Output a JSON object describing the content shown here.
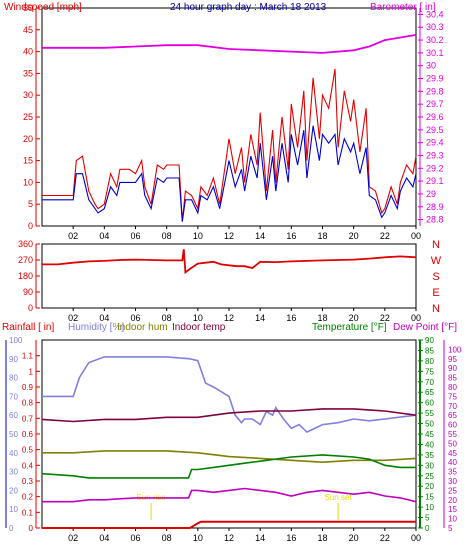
{
  "title": "24 hour graph day : March 18 2013",
  "colors": {
    "wind": "#e00000",
    "wind_avg": "#0000cc",
    "barometer": "#e000e0",
    "direction": "#e00000",
    "humidity": "#8080e0",
    "indoor_hum": "#808000",
    "indoor_temp": "#800040",
    "temperature": "#008000",
    "dew_point": "#c000c0",
    "rain": "#e00000",
    "sun_marker": "#e0e000",
    "grid": "#c0c0c0"
  },
  "charts": [
    {
      "id": "wind-baro",
      "left_label": "Windspeed [mph]",
      "right_label": "Barometer [ in]"
    },
    {
      "id": "direction",
      "left_label": "",
      "compass_labels": [
        "N",
        "W",
        "S",
        "E",
        "N"
      ]
    },
    {
      "id": "temp-hum",
      "labels": {
        "rainfall": "Rainfall [ in]",
        "humidity": "Humidity [%]",
        "indoor_hum": "Indoor hum",
        "indoor_temp": "Indoor temp",
        "temperature": "Temperature [°F]",
        "dew_point": "Dew Point [°F]"
      },
      "sun_labels": [
        "Sun rise",
        "Sun set"
      ]
    }
  ],
  "chart_data": [
    {
      "type": "line",
      "title": "24 hour graph day : March 18 2013",
      "x_ticks": [
        "02",
        "04",
        "06",
        "08",
        "10",
        "12",
        "14",
        "16",
        "18",
        "20",
        "22",
        "00"
      ],
      "xlim": [
        0,
        24
      ],
      "ylabel": "Windspeed [mph]",
      "ylim": [
        0,
        50
      ],
      "y_ticks": [
        0,
        5,
        10,
        15,
        20,
        25,
        30,
        35,
        40,
        45,
        50
      ],
      "y2label": "Barometer [ in]",
      "y2lim": [
        28.75,
        30.45
      ],
      "y2_ticks": [
        "28.8",
        "28.9",
        "29",
        "29.1",
        "29.2",
        "29.3",
        "29.4",
        "29.5",
        "29.6",
        "29.7",
        "29.8",
        "29.9",
        "30",
        "30.1",
        "30.2",
        "30.3",
        "30.4"
      ],
      "grid": false,
      "series": [
        {
          "name": "Windspeed [mph]",
          "axis": "left",
          "color_key": "wind",
          "x": [
            0,
            2,
            2.2,
            2.6,
            3,
            3.4,
            3.6,
            4,
            4.4,
            4.8,
            5,
            5.6,
            6,
            6.4,
            6.6,
            7,
            7.4,
            7.8,
            8,
            8.4,
            8.8,
            9,
            9.2,
            9.6,
            10,
            10.2,
            10.6,
            11,
            11.4,
            12,
            12.4,
            12.8,
            13,
            13.4,
            13.8,
            14,
            14.4,
            14.8,
            15,
            15.4,
            15.8,
            16,
            16.4,
            16.8,
            17,
            17.4,
            17.8,
            18,
            18.4,
            18.8,
            19,
            19.4,
            19.8,
            20,
            20.4,
            20.8,
            21,
            21.4,
            21.8,
            22,
            22.4,
            22.8,
            23,
            23.4,
            23.8,
            24
          ],
          "y": [
            7,
            7,
            15,
            16,
            8,
            5,
            4,
            5,
            12,
            9,
            13,
            13,
            12,
            15,
            9,
            5,
            14,
            13,
            14,
            14,
            14,
            1,
            8,
            7,
            4,
            9,
            7,
            11,
            5,
            20,
            12,
            18,
            10,
            21,
            14,
            26,
            8,
            22,
            10,
            25,
            13,
            28,
            18,
            31,
            15,
            34,
            20,
            30,
            27,
            36,
            18,
            31,
            24,
            29,
            17,
            27,
            9,
            8,
            3,
            4,
            9,
            5,
            10,
            14,
            12,
            16
          ]
        },
        {
          "name": "Wind average",
          "axis": "left",
          "color_key": "wind_avg",
          "x": [
            0,
            2,
            2.2,
            2.6,
            3,
            3.4,
            3.6,
            4,
            4.4,
            4.8,
            5,
            5.6,
            6,
            6.4,
            6.6,
            7,
            7.4,
            7.8,
            8,
            8.4,
            8.8,
            9,
            9.2,
            9.6,
            10,
            10.2,
            10.6,
            11,
            11.4,
            12,
            12.4,
            12.8,
            13,
            13.4,
            13.8,
            14,
            14.4,
            14.8,
            15,
            15.4,
            15.8,
            16,
            16.4,
            16.8,
            17,
            17.4,
            17.8,
            18,
            18.4,
            18.8,
            19,
            19.4,
            19.8,
            20,
            20.4,
            20.8,
            21,
            21.4,
            21.8,
            22,
            22.4,
            22.8,
            23,
            23.4,
            23.8,
            24
          ],
          "y": [
            6,
            6,
            12,
            12,
            6,
            4,
            3,
            4,
            9,
            7,
            10,
            10,
            10,
            12,
            7,
            4,
            11,
            10,
            11,
            11,
            11,
            1,
            6,
            6,
            3,
            7,
            6,
            9,
            4,
            15,
            9,
            13,
            8,
            16,
            11,
            19,
            6,
            16,
            8,
            19,
            10,
            21,
            14,
            22,
            11,
            23,
            15,
            21,
            19,
            21,
            14,
            20,
            17,
            19,
            12,
            18,
            7,
            6,
            2,
            3,
            7,
            4,
            8,
            11,
            9,
            12
          ]
        },
        {
          "name": "Barometer [ in]",
          "axis": "right",
          "color_key": "barometer",
          "x": [
            0,
            2,
            4,
            6,
            8,
            10,
            12,
            14,
            16,
            18,
            20,
            21,
            22,
            23,
            24
          ],
          "y": [
            30.14,
            30.14,
            30.14,
            30.15,
            30.16,
            30.16,
            30.13,
            30.12,
            30.11,
            30.1,
            30.12,
            30.15,
            30.2,
            30.22,
            30.24
          ]
        }
      ]
    },
    {
      "type": "line",
      "x_ticks": [
        "02",
        "04",
        "06",
        "08",
        "10",
        "12",
        "14",
        "16",
        "18",
        "20",
        "22",
        "00"
      ],
      "xlim": [
        0,
        24
      ],
      "ylim": [
        0,
        360
      ],
      "y_ticks": [
        0,
        90,
        180,
        270,
        360
      ],
      "series": [
        {
          "name": "Wind direction",
          "color_key": "direction",
          "x": [
            0,
            1,
            2,
            3,
            4,
            5,
            6,
            7,
            8,
            9,
            9.1,
            9.2,
            9.5,
            10,
            10.5,
            11,
            11.5,
            12,
            12.5,
            13,
            13.5,
            14,
            15,
            16,
            17,
            18,
            19,
            20,
            21,
            22,
            23,
            24
          ],
          "y": [
            245,
            245,
            255,
            262,
            265,
            270,
            272,
            270,
            268,
            268,
            330,
            200,
            220,
            250,
            255,
            260,
            245,
            240,
            235,
            235,
            225,
            260,
            258,
            262,
            265,
            268,
            270,
            272,
            278,
            285,
            290,
            285
          ]
        }
      ]
    },
    {
      "type": "line",
      "x_ticks": [
        "02",
        "04",
        "06",
        "08",
        "10",
        "12",
        "14",
        "16",
        "18",
        "20",
        "22",
        "00"
      ],
      "xlim": [
        0,
        24
      ],
      "rainfall_axis": {
        "label": "Rainfall [ in]",
        "lim": [
          0,
          1.2
        ],
        "ticks": [
          0,
          0.1,
          0.2,
          0.3,
          0.4,
          0.5,
          0.6,
          0.7,
          0.8,
          0.9,
          1,
          1.1
        ]
      },
      "humidity_axis": {
        "label": "Humidity [%]",
        "lim": [
          0,
          100
        ],
        "ticks": [
          0,
          10,
          20,
          30,
          40,
          50,
          60,
          70,
          80,
          90,
          100
        ]
      },
      "temperature_axis": {
        "label": "Temperature [°F]",
        "lim": [
          0,
          90
        ],
        "ticks": [
          0,
          5,
          10,
          15,
          20,
          25,
          30,
          35,
          40,
          45,
          50,
          55,
          60,
          65,
          70,
          75,
          80,
          85,
          90
        ]
      },
      "dew_axis": {
        "label": "Dew Point [°F]",
        "lim": [
          5,
          105
        ],
        "ticks": [
          5,
          10,
          15,
          20,
          25,
          30,
          35,
          40,
          45,
          50,
          55,
          60,
          65,
          70,
          75,
          80,
          85,
          90,
          95,
          100
        ]
      },
      "sun": {
        "sunrise_hour": 7.0,
        "sunset_hour": 19.0
      },
      "series": [
        {
          "name": "Humidity [%]",
          "axis": "humidity",
          "color_key": "humidity",
          "x": [
            0,
            2,
            2.4,
            3,
            4,
            6,
            8,
            9.5,
            10,
            10.5,
            11,
            12,
            12.4,
            12.8,
            13,
            13.5,
            14,
            14.4,
            14.8,
            15,
            15.5,
            16,
            16.5,
            17,
            17.5,
            18,
            19,
            20,
            21,
            22,
            23,
            24
          ],
          "y": [
            70,
            70,
            80,
            88,
            91,
            91,
            91,
            90,
            89,
            77,
            75,
            70,
            60,
            56,
            58,
            58,
            55,
            62,
            60,
            64,
            58,
            53,
            55,
            51,
            53,
            55,
            56,
            58,
            57,
            58,
            59,
            60
          ]
        },
        {
          "name": "Indoor hum",
          "axis": "humidity",
          "color_key": "indoor_hum",
          "x": [
            0,
            2,
            4,
            6,
            8,
            10,
            12,
            14,
            16,
            18,
            20,
            22,
            24
          ],
          "y": [
            40,
            40,
            41,
            41,
            41,
            40,
            38,
            37,
            36,
            35,
            36,
            36,
            37
          ]
        },
        {
          "name": "Indoor temp",
          "axis": "temperature",
          "color_key": "indoor_temp",
          "x": [
            0,
            2,
            4,
            6,
            8,
            10,
            12,
            14,
            16,
            18,
            20,
            22,
            24
          ],
          "y": [
            52,
            51,
            52,
            52,
            53,
            53,
            55,
            56,
            56,
            57,
            57,
            56,
            54
          ]
        },
        {
          "name": "Temperature [°F]",
          "axis": "temperature",
          "color_key": "temperature",
          "x": [
            0,
            2,
            3,
            4,
            6,
            8,
            9.4,
            9.6,
            10,
            11,
            12,
            13,
            14,
            16,
            18,
            20,
            21,
            22,
            23,
            24
          ],
          "y": [
            26,
            25,
            24,
            24,
            24,
            24,
            24,
            28,
            28,
            29,
            30,
            31,
            32,
            34,
            35,
            34,
            33,
            30,
            29,
            29
          ]
        },
        {
          "name": "Dew Point [°F]",
          "axis": "dew",
          "color_key": "dew_point",
          "x": [
            0,
            2,
            3,
            4,
            6,
            8,
            9.4,
            9.6,
            10,
            11,
            12,
            13,
            14,
            15,
            16,
            17,
            18,
            19,
            20,
            21,
            22,
            23,
            24
          ],
          "y": [
            19,
            19,
            20,
            20,
            21,
            21,
            21,
            25,
            25,
            24,
            25,
            26,
            25,
            24,
            22,
            24,
            25,
            24,
            23,
            24,
            22,
            21,
            19
          ]
        },
        {
          "name": "Rainfall [ in]",
          "axis": "rainfall",
          "color_key": "rain",
          "x": [
            0,
            9.5,
            10,
            10.2,
            12,
            24
          ],
          "y": [
            0,
            0,
            0.03,
            0.04,
            0.04,
            0.04
          ]
        }
      ]
    }
  ]
}
